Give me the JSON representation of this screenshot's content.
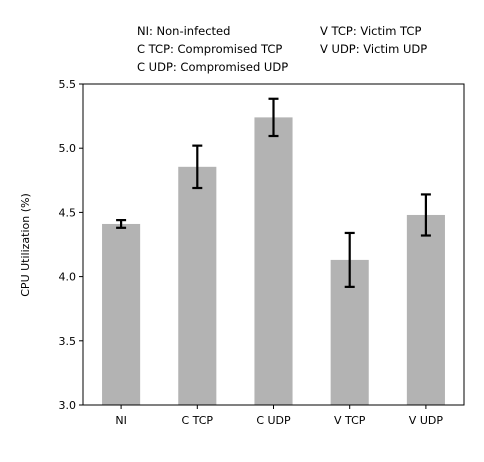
{
  "legend_notes": [
    "NI: Non-infected",
    "C TCP: Compromised TCP",
    "C UDP: Compromised UDP",
    "V TCP: Victim TCP",
    "V UDP: Victim UDP"
  ],
  "chart_data": {
    "type": "bar",
    "title": "",
    "xlabel": "",
    "ylabel": "CPU Utilization (%)",
    "categories": [
      "NI",
      "C TCP",
      "C UDP",
      "V TCP",
      "V UDP"
    ],
    "values": [
      4.41,
      4.855,
      5.24,
      4.13,
      4.48
    ],
    "error": [
      0.03,
      0.165,
      0.145,
      0.21,
      0.16
    ],
    "ylim": [
      3.0,
      5.5
    ],
    "yticks": [
      3.0,
      3.5,
      4.0,
      4.5,
      5.0,
      5.5
    ],
    "ytick_labels": [
      "3.0",
      "3.5",
      "4.0",
      "4.5",
      "5.0",
      "5.5"
    ],
    "bar_color": "#b3b3b3",
    "error_color": "#000000",
    "grid": false
  }
}
